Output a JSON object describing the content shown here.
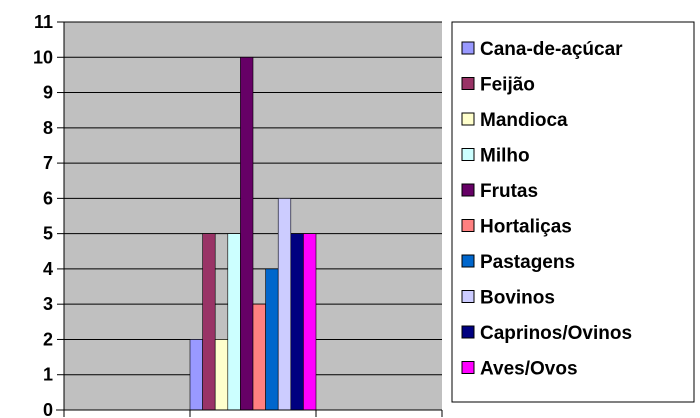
{
  "chart_data": {
    "type": "bar",
    "title": "",
    "xlabel": "",
    "ylabel": "",
    "ylim": [
      0,
      11
    ],
    "yticks": [
      0,
      1,
      2,
      3,
      4,
      5,
      6,
      7,
      8,
      9,
      10,
      11
    ],
    "grid": true,
    "legend_position": "right",
    "categories": [
      ""
    ],
    "series": [
      {
        "name": "Cana-de-açúcar",
        "values": [
          2
        ],
        "color": "#9999ff"
      },
      {
        "name": "Feijão",
        "values": [
          5
        ],
        "color": "#993366"
      },
      {
        "name": "Mandioca",
        "values": [
          2
        ],
        "color": "#ffffcc"
      },
      {
        "name": "Milho",
        "values": [
          5
        ],
        "color": "#ccffff"
      },
      {
        "name": "Frutas",
        "values": [
          10
        ],
        "color": "#660066"
      },
      {
        "name": "Hortaliças",
        "values": [
          3
        ],
        "color": "#ff8080"
      },
      {
        "name": "Pastagens",
        "values": [
          4
        ],
        "color": "#0066cc"
      },
      {
        "name": "Bovinos",
        "values": [
          6
        ],
        "color": "#ccccff"
      },
      {
        "name": "Caprinos/Ovinos",
        "values": [
          5
        ],
        "color": "#000080"
      },
      {
        "name": "Aves/Ovos",
        "values": [
          5
        ],
        "color": "#ff00ff"
      }
    ],
    "plot_background": "#c0c0c0"
  }
}
